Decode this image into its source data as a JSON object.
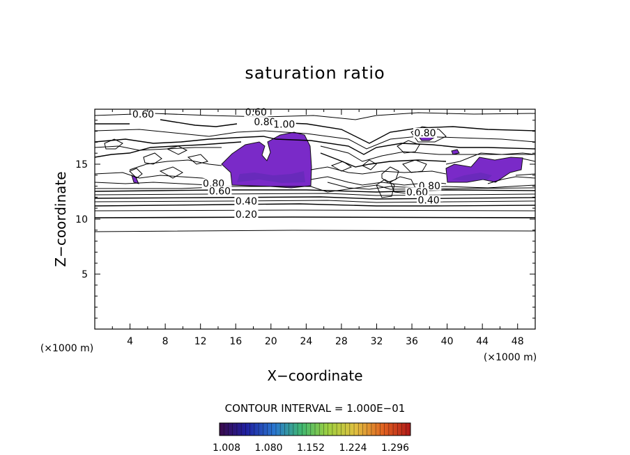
{
  "chart_data": {
    "type": "contour",
    "title": "saturation ratio",
    "xlabel": "X−coordinate",
    "ylabel": "Z−coordinate",
    "x_unit_label": "(×1000 m)",
    "z_unit_label": "(×1000 m)",
    "xlim": [
      0,
      50
    ],
    "ylim": [
      0,
      20
    ],
    "x_ticks": [
      4,
      8,
      12,
      16,
      20,
      24,
      28,
      32,
      36,
      40,
      44,
      48
    ],
    "y_ticks": [
      5,
      10,
      15
    ],
    "contour_interval_text": "CONTOUR INTERVAL = 1.000E−01",
    "contour_labels": [
      {
        "text": "0.60",
        "x": 5.5,
        "z": 19.3
      },
      {
        "text": "0.60",
        "x": 18.3,
        "z": 19.5
      },
      {
        "text": "0.80",
        "x": 19.3,
        "z": 18.6
      },
      {
        "text": "1.00",
        "x": 21.5,
        "z": 18.4
      },
      {
        "text": "0.80",
        "x": 37.5,
        "z": 17.6
      },
      {
        "text": "0.80",
        "x": 13.5,
        "z": 13.0
      },
      {
        "text": "0.60",
        "x": 14.2,
        "z": 12.3
      },
      {
        "text": "0.40",
        "x": 17.2,
        "z": 11.4
      },
      {
        "text": "0.20",
        "x": 17.2,
        "z": 10.2
      },
      {
        "text": "0.80",
        "x": 38.0,
        "z": 12.8
      },
      {
        "text": "0.60",
        "x": 36.6,
        "z": 12.2
      },
      {
        "text": "0.40",
        "x": 37.9,
        "z": 11.5
      }
    ],
    "colorbar": {
      "ticks": [
        "1.008",
        "1.080",
        "1.152",
        "1.224",
        "1.296"
      ],
      "colors": [
        "#3a0a4a",
        "#2020a0",
        "#2a78d0",
        "#40b870",
        "#a0d040",
        "#e0c040",
        "#e06020",
        "#b01818"
      ]
    }
  }
}
